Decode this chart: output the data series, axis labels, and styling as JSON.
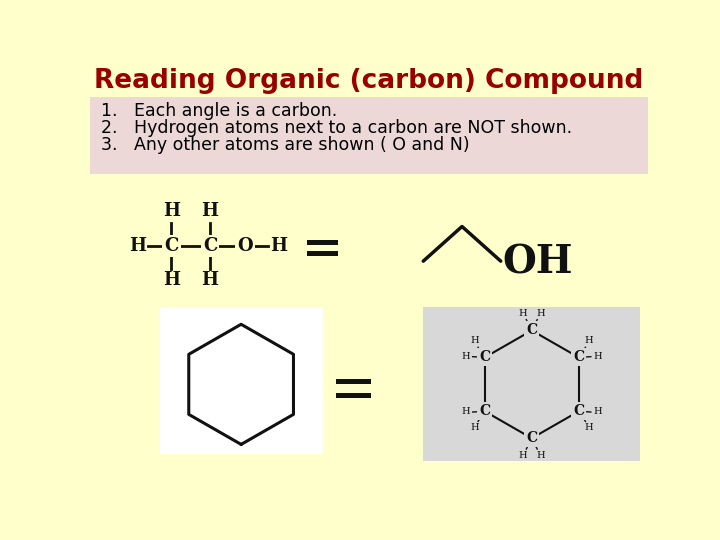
{
  "bg_color": "#FFFFCC",
  "title": "Reading Organic (carbon) Compound",
  "title_color": "#990000",
  "title_fontsize": 19,
  "title_fontstyle": "bold",
  "list_bg_color": "#EDD8D8",
  "list_items": [
    "1.   Each angle is a carbon.",
    "2.   Hydrogen atoms next to a carbon are NOT shown.",
    "3.   Any other atoms are shown ( O and N)"
  ],
  "list_fontsize": 12.5,
  "equals_color": "#111111",
  "molecule_color": "#111111",
  "cyclohexane_bg": "#ffffff",
  "cyclohex_expanded_bg": "#d8d8d8"
}
